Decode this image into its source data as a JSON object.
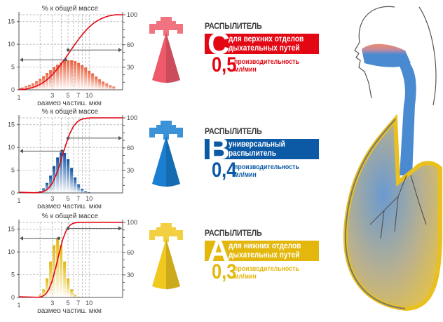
{
  "colors": {
    "red": "#e30613",
    "blue": "#0c5aa6",
    "yellow": "#e3b70c",
    "curve": "#e30613",
    "grid": "#999999",
    "arrow": "#555555"
  },
  "charts_common": {
    "ylabel": "% к общей массе",
    "xlabel": "размер частиц, мкм"
  },
  "chart_data": [
    {
      "type": "bar",
      "title": "",
      "ylabel": "% к общей массе",
      "xlabel": "размер частиц, мкм",
      "x_scale": "log",
      "xlim": [
        1,
        30
      ],
      "ylim": [
        0,
        16.5
      ],
      "y2lim": [
        0,
        100
      ],
      "x_ticks": [
        "1",
        "3",
        "5",
        "7",
        "10"
      ],
      "y_ticks": [
        "0",
        "5",
        "10",
        "15"
      ],
      "y2_ticks": [
        "30",
        "60",
        "100"
      ],
      "grid": true,
      "bar_color": "#e8603c",
      "x": [
        1.12,
        1.26,
        1.41,
        1.58,
        1.78,
        2.0,
        2.24,
        2.51,
        2.82,
        3.16,
        3.55,
        3.98,
        4.47,
        5.01,
        5.62,
        6.31,
        7.08,
        7.94,
        8.91,
        10,
        11.2,
        12.6,
        14.1,
        15.8,
        17.8,
        20,
        22.4
      ],
      "values": [
        0.5,
        0.8,
        1.1,
        1.4,
        1.9,
        2.4,
        3.0,
        3.7,
        4.3,
        5.0,
        5.5,
        6.0,
        6.3,
        6.5,
        6.5,
        6.3,
        5.9,
        5.4,
        4.9,
        4.2,
        3.6,
        2.9,
        2.3,
        1.8,
        1.4,
        1.0,
        0.7
      ],
      "left_marker": {
        "x": 4.6,
        "y": 6.6
      },
      "right_marker": {
        "x": 5,
        "y2": 53
      }
    },
    {
      "type": "bar",
      "title": "",
      "ylabel": "% к общей массе",
      "xlabel": "размер частиц, мкм",
      "x_scale": "log",
      "xlim": [
        1,
        30
      ],
      "ylim": [
        0,
        16.5
      ],
      "y2lim": [
        0,
        100
      ],
      "x_ticks": [
        "1",
        "3",
        "5",
        "7",
        "10"
      ],
      "y_ticks": [
        "0",
        "5",
        "10",
        "15"
      ],
      "y2_ticks": [
        "30",
        "60",
        "100"
      ],
      "grid": true,
      "bar_color": "#0c4f9e",
      "x": [
        1.58,
        1.78,
        2.0,
        2.24,
        2.51,
        2.82,
        3.16,
        3.55,
        3.98,
        4.47,
        5.01,
        5.62,
        6.31,
        7.08,
        7.94,
        8.91,
        10,
        11.2
      ],
      "values": [
        0.1,
        0.2,
        0.4,
        1.0,
        2.2,
        3.8,
        5.9,
        7.8,
        8.9,
        8.8,
        7.4,
        5.5,
        3.4,
        1.9,
        0.9,
        0.4,
        0.15,
        0.05
      ],
      "left_marker": {
        "x": 4.1,
        "y": 9.2
      },
      "right_marker": {
        "x": 5,
        "y2": 73
      }
    },
    {
      "type": "bar",
      "title": "",
      "ylabel": "% к общей массе",
      "xlabel": "размер частиц, мкм",
      "x_scale": "log",
      "xlim": [
        1,
        30
      ],
      "ylim": [
        0,
        16.5
      ],
      "y2lim": [
        0,
        100
      ],
      "x_ticks": [
        "1",
        "3",
        "5",
        "7",
        "10"
      ],
      "y_ticks": [
        "0",
        "5",
        "10",
        "15"
      ],
      "y2_ticks": [
        "30",
        "60",
        "100"
      ],
      "grid": true,
      "bar_color": "#e3b70c",
      "x": [
        1.78,
        2.0,
        2.24,
        2.51,
        2.82,
        3.16,
        3.55,
        3.98,
        4.47,
        5.01,
        5.62,
        6.31,
        7.08
      ],
      "values": [
        0.15,
        0.6,
        1.8,
        4.2,
        7.9,
        11.5,
        13.0,
        11.5,
        7.9,
        4.2,
        1.8,
        0.6,
        0.15
      ],
      "left_marker": {
        "x": 3.7,
        "y": 13
      },
      "right_marker": {
        "x": 5,
        "y2": 92
      }
    }
  ],
  "nebulizers": [
    {
      "heading": "РАСПЫЛИТЕЛЬ",
      "letter": "C",
      "description_line1": "для верхних отделов",
      "description_line2": "дыхательных путей",
      "rate": "0,5",
      "rate_label_line1": "производительность",
      "rate_label_line2": "мл/мин",
      "color": "#e30613",
      "nozzle_color": "#ef5a6a",
      "icon": "nozzle-red-icon"
    },
    {
      "heading": "РАСПЫЛИТЕЛЬ",
      "letter": "B",
      "description_line1": "универсальный",
      "description_line2": "распылитель",
      "rate": "0,4",
      "rate_label_line1": "производительность",
      "rate_label_line2": "мл/мин",
      "color": "#0c5aa6",
      "nozzle_color": "#1a7fd0",
      "icon": "nozzle-blue-icon"
    },
    {
      "heading": "РАСПЫЛИТЕЛЬ",
      "letter": "A",
      "description_line1": "для нижних отделов",
      "description_line2": "дыхательных путей",
      "rate": "0,3",
      "rate_label_line1": "производительность",
      "rate_label_line2": "мл/мин",
      "color": "#e3b70c",
      "nozzle_color": "#f0c820",
      "icon": "nozzle-yellow-icon"
    }
  ],
  "anatomy": {
    "icon": "respiratory-tract-icon"
  }
}
